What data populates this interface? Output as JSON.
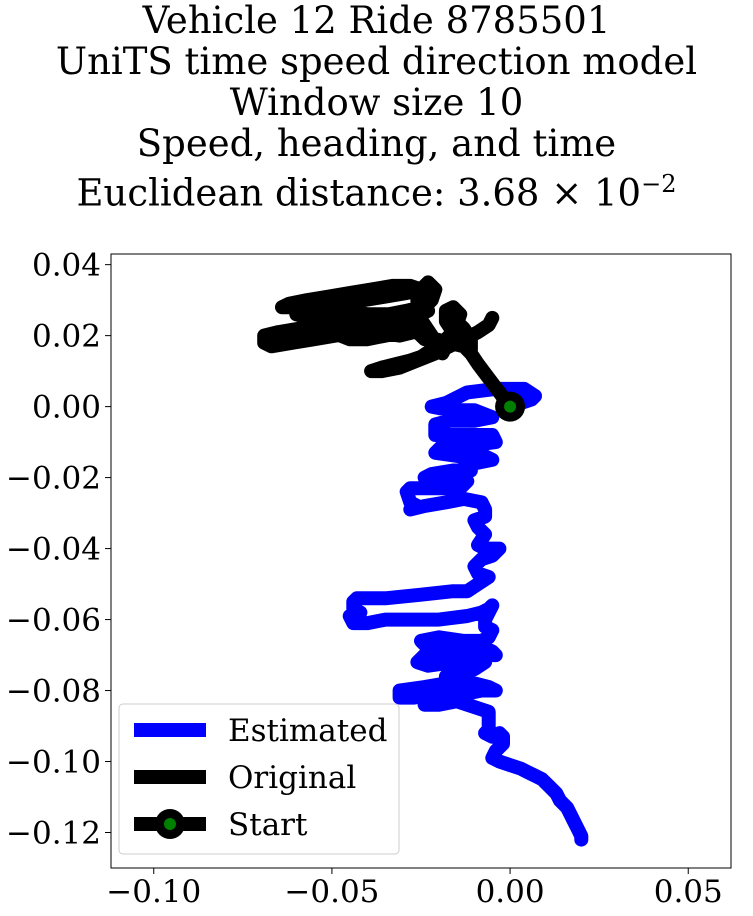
{
  "chart_data": {
    "type": "line",
    "title_lines": [
      "Vehicle 12 Ride 8785501",
      "UniTS time speed direction model",
      "Window size 10",
      "Speed, heading, and time",
      "Euclidean distance: 3.68 × 10"
    ],
    "title_exponent": "−2",
    "xlim": [
      -0.112,
      0.062
    ],
    "ylim": [
      -0.13,
      0.043
    ],
    "x_ticks": [
      {
        "value": -0.1,
        "label": "−0.10"
      },
      {
        "value": -0.05,
        "label": "−0.05"
      },
      {
        "value": 0.0,
        "label": "0.00"
      },
      {
        "value": 0.05,
        "label": "0.05"
      }
    ],
    "y_ticks": [
      {
        "value": 0.04,
        "label": "0.04"
      },
      {
        "value": 0.02,
        "label": "0.02"
      },
      {
        "value": 0.0,
        "label": "0.00"
      },
      {
        "value": -0.02,
        "label": "−0.02"
      },
      {
        "value": -0.04,
        "label": "−0.04"
      },
      {
        "value": -0.06,
        "label": "−0.06"
      },
      {
        "value": -0.08,
        "label": "−0.08"
      },
      {
        "value": -0.1,
        "label": "−0.10"
      },
      {
        "value": -0.12,
        "label": "−0.12"
      }
    ],
    "grid": false,
    "legend_position": "lower-left",
    "series": [
      {
        "name": "Estimated",
        "color": "#0000ff",
        "points": [
          [
            0.0,
            0.0
          ],
          [
            0.006,
            0.002
          ],
          [
            0.007,
            0.003
          ],
          [
            0.004,
            0.005
          ],
          [
            -0.004,
            0.005
          ],
          [
            -0.012,
            0.004
          ],
          [
            -0.018,
            0.001
          ],
          [
            -0.022,
            0.0
          ],
          [
            -0.017,
            -0.001
          ],
          [
            -0.01,
            -0.001
          ],
          [
            -0.005,
            -0.003
          ],
          [
            -0.01,
            -0.004
          ],
          [
            -0.017,
            -0.004
          ],
          [
            -0.021,
            -0.005
          ],
          [
            -0.021,
            -0.008
          ],
          [
            -0.013,
            -0.008
          ],
          [
            -0.005,
            -0.008
          ],
          [
            -0.004,
            -0.01
          ],
          [
            -0.012,
            -0.011
          ],
          [
            -0.019,
            -0.011
          ],
          [
            -0.021,
            -0.013
          ],
          [
            -0.014,
            -0.014
          ],
          [
            -0.007,
            -0.014
          ],
          [
            -0.005,
            -0.015
          ],
          [
            -0.01,
            -0.016
          ],
          [
            -0.013,
            -0.017
          ],
          [
            -0.011,
            -0.018
          ],
          [
            -0.016,
            -0.018
          ],
          [
            -0.022,
            -0.019
          ],
          [
            -0.024,
            -0.02
          ],
          [
            -0.017,
            -0.02
          ],
          [
            -0.012,
            -0.021
          ],
          [
            -0.014,
            -0.023
          ],
          [
            -0.021,
            -0.023
          ],
          [
            -0.028,
            -0.023
          ],
          [
            -0.029,
            -0.024
          ],
          [
            -0.028,
            -0.027
          ],
          [
            -0.026,
            -0.028
          ],
          [
            -0.028,
            -0.029
          ],
          [
            -0.024,
            -0.028
          ],
          [
            -0.018,
            -0.027
          ],
          [
            -0.013,
            -0.026
          ],
          [
            -0.008,
            -0.027
          ],
          [
            -0.007,
            -0.029
          ],
          [
            -0.007,
            -0.031
          ],
          [
            -0.01,
            -0.032
          ],
          [
            -0.009,
            -0.034
          ],
          [
            -0.007,
            -0.036
          ],
          [
            -0.009,
            -0.039
          ],
          [
            -0.007,
            -0.04
          ],
          [
            -0.003,
            -0.04
          ],
          [
            -0.005,
            -0.042
          ],
          [
            -0.008,
            -0.043
          ],
          [
            -0.01,
            -0.045
          ],
          [
            -0.009,
            -0.047
          ],
          [
            -0.006,
            -0.048
          ],
          [
            -0.009,
            -0.05
          ],
          [
            -0.012,
            -0.052
          ],
          [
            -0.016,
            -0.052
          ],
          [
            -0.025,
            -0.053
          ],
          [
            -0.035,
            -0.054
          ],
          [
            -0.043,
            -0.054
          ],
          [
            -0.044,
            -0.055
          ],
          [
            -0.044,
            -0.057
          ],
          [
            -0.042,
            -0.058
          ],
          [
            -0.045,
            -0.059
          ],
          [
            -0.044,
            -0.061
          ],
          [
            -0.04,
            -0.061
          ],
          [
            -0.035,
            -0.06
          ],
          [
            -0.028,
            -0.06
          ],
          [
            -0.02,
            -0.06
          ],
          [
            -0.012,
            -0.059
          ],
          [
            -0.008,
            -0.058
          ],
          [
            -0.006,
            -0.057
          ],
          [
            -0.005,
            -0.056
          ],
          [
            -0.006,
            -0.058
          ],
          [
            -0.007,
            -0.06
          ],
          [
            -0.007,
            -0.062
          ],
          [
            -0.005,
            -0.063
          ],
          [
            -0.006,
            -0.065
          ],
          [
            -0.008,
            -0.066
          ],
          [
            -0.013,
            -0.066
          ],
          [
            -0.02,
            -0.065
          ],
          [
            -0.025,
            -0.066
          ],
          [
            -0.023,
            -0.068
          ],
          [
            -0.018,
            -0.068
          ],
          [
            -0.012,
            -0.068
          ],
          [
            -0.007,
            -0.068
          ],
          [
            -0.005,
            -0.069
          ],
          [
            -0.004,
            -0.07
          ],
          [
            -0.01,
            -0.07
          ],
          [
            -0.018,
            -0.07
          ],
          [
            -0.024,
            -0.07
          ],
          [
            -0.026,
            -0.072
          ],
          [
            -0.023,
            -0.073
          ],
          [
            -0.016,
            -0.072
          ],
          [
            -0.01,
            -0.071
          ],
          [
            -0.007,
            -0.072
          ],
          [
            -0.01,
            -0.074
          ],
          [
            -0.014,
            -0.075
          ],
          [
            -0.018,
            -0.076
          ],
          [
            -0.018,
            -0.078
          ],
          [
            -0.024,
            -0.079
          ],
          [
            -0.031,
            -0.08
          ],
          [
            -0.031,
            -0.082
          ],
          [
            -0.027,
            -0.082
          ],
          [
            -0.022,
            -0.081
          ],
          [
            -0.018,
            -0.08
          ],
          [
            -0.014,
            -0.079
          ],
          [
            -0.01,
            -0.078
          ],
          [
            -0.006,
            -0.079
          ],
          [
            -0.004,
            -0.08
          ],
          [
            -0.008,
            -0.08
          ],
          [
            -0.013,
            -0.081
          ],
          [
            -0.017,
            -0.082
          ],
          [
            -0.021,
            -0.083
          ],
          [
            -0.024,
            -0.084
          ],
          [
            -0.02,
            -0.084
          ],
          [
            -0.015,
            -0.083
          ],
          [
            -0.012,
            -0.084
          ],
          [
            -0.009,
            -0.085
          ],
          [
            -0.006,
            -0.086
          ],
          [
            -0.006,
            -0.087
          ],
          [
            -0.006,
            -0.089
          ],
          [
            -0.006,
            -0.09
          ],
          [
            -0.006,
            -0.091
          ],
          [
            -0.007,
            -0.092
          ],
          [
            -0.005,
            -0.093
          ],
          [
            -0.003,
            -0.092
          ],
          [
            -0.002,
            -0.093
          ],
          [
            -0.002,
            -0.095
          ],
          [
            -0.004,
            -0.097
          ],
          [
            -0.005,
            -0.099
          ],
          [
            -0.003,
            -0.1
          ],
          [
            0.0,
            -0.101
          ],
          [
            0.003,
            -0.102
          ],
          [
            0.005,
            -0.103
          ],
          [
            0.007,
            -0.104
          ],
          [
            0.009,
            -0.105
          ],
          [
            0.011,
            -0.107
          ],
          [
            0.013,
            -0.109
          ],
          [
            0.014,
            -0.111
          ],
          [
            0.016,
            -0.113
          ],
          [
            0.017,
            -0.115
          ],
          [
            0.018,
            -0.117
          ],
          [
            0.019,
            -0.119
          ],
          [
            0.02,
            -0.121
          ],
          [
            0.02,
            -0.122
          ]
        ]
      },
      {
        "name": "Original",
        "color": "#000000",
        "points": [
          [
            0.0,
            0.0
          ],
          [
            -0.003,
            0.004
          ],
          [
            -0.006,
            0.008
          ],
          [
            -0.009,
            0.012
          ],
          [
            -0.011,
            0.015
          ],
          [
            -0.013,
            0.017
          ],
          [
            -0.017,
            0.018
          ],
          [
            -0.021,
            0.019
          ],
          [
            -0.024,
            0.019
          ],
          [
            -0.026,
            0.021
          ],
          [
            -0.031,
            0.022
          ],
          [
            -0.037,
            0.022
          ],
          [
            -0.042,
            0.021
          ],
          [
            -0.049,
            0.02
          ],
          [
            -0.055,
            0.019
          ],
          [
            -0.061,
            0.018
          ],
          [
            -0.067,
            0.017
          ],
          [
            -0.069,
            0.018
          ],
          [
            -0.069,
            0.02
          ],
          [
            -0.065,
            0.021
          ],
          [
            -0.059,
            0.022
          ],
          [
            -0.052,
            0.022
          ],
          [
            -0.045,
            0.021
          ],
          [
            -0.038,
            0.021
          ],
          [
            -0.031,
            0.02
          ],
          [
            -0.027,
            0.021
          ],
          [
            -0.03,
            0.023
          ],
          [
            -0.036,
            0.023
          ],
          [
            -0.043,
            0.024
          ],
          [
            -0.05,
            0.024
          ],
          [
            -0.056,
            0.025
          ],
          [
            -0.06,
            0.026
          ],
          [
            -0.058,
            0.027
          ],
          [
            -0.053,
            0.028
          ],
          [
            -0.047,
            0.029
          ],
          [
            -0.041,
            0.03
          ],
          [
            -0.035,
            0.031
          ],
          [
            -0.029,
            0.032
          ],
          [
            -0.025,
            0.033
          ],
          [
            -0.028,
            0.034
          ],
          [
            -0.033,
            0.034
          ],
          [
            -0.039,
            0.033
          ],
          [
            -0.045,
            0.032
          ],
          [
            -0.051,
            0.031
          ],
          [
            -0.057,
            0.03
          ],
          [
            -0.062,
            0.029
          ],
          [
            -0.064,
            0.028
          ],
          [
            -0.058,
            0.028
          ],
          [
            -0.052,
            0.027
          ],
          [
            -0.046,
            0.027
          ],
          [
            -0.04,
            0.026
          ],
          [
            -0.034,
            0.026
          ],
          [
            -0.029,
            0.027
          ],
          [
            -0.025,
            0.028
          ],
          [
            -0.023,
            0.027
          ],
          [
            -0.027,
            0.025
          ],
          [
            -0.033,
            0.024
          ],
          [
            -0.039,
            0.024
          ],
          [
            -0.045,
            0.024
          ],
          [
            -0.051,
            0.024
          ],
          [
            -0.054,
            0.023
          ],
          [
            -0.05,
            0.021
          ],
          [
            -0.045,
            0.019
          ],
          [
            -0.04,
            0.019
          ],
          [
            -0.035,
            0.02
          ],
          [
            -0.03,
            0.021
          ],
          [
            -0.027,
            0.024
          ],
          [
            -0.025,
            0.027
          ],
          [
            -0.022,
            0.03
          ],
          [
            -0.021,
            0.033
          ],
          [
            -0.023,
            0.035
          ],
          [
            -0.025,
            0.033
          ],
          [
            -0.026,
            0.03
          ],
          [
            -0.026,
            0.026
          ],
          [
            -0.024,
            0.023
          ],
          [
            -0.022,
            0.02
          ],
          [
            -0.02,
            0.017
          ],
          [
            -0.019,
            0.015
          ],
          [
            -0.017,
            0.019
          ],
          [
            -0.015,
            0.023
          ],
          [
            -0.014,
            0.026
          ],
          [
            -0.016,
            0.028
          ],
          [
            -0.018,
            0.027
          ],
          [
            -0.018,
            0.024
          ],
          [
            -0.016,
            0.021
          ],
          [
            -0.014,
            0.018
          ],
          [
            -0.011,
            0.016
          ],
          [
            -0.011,
            0.019
          ],
          [
            -0.013,
            0.022
          ],
          [
            -0.015,
            0.024
          ],
          [
            -0.016,
            0.021
          ],
          [
            -0.019,
            0.018
          ],
          [
            -0.022,
            0.016
          ],
          [
            -0.025,
            0.014
          ],
          [
            -0.028,
            0.013
          ],
          [
            -0.032,
            0.012
          ],
          [
            -0.036,
            0.011
          ],
          [
            -0.039,
            0.01
          ],
          [
            -0.036,
            0.01
          ],
          [
            -0.031,
            0.011
          ],
          [
            -0.026,
            0.013
          ],
          [
            -0.021,
            0.015
          ],
          [
            -0.017,
            0.017
          ],
          [
            -0.013,
            0.019
          ],
          [
            -0.009,
            0.021
          ],
          [
            -0.006,
            0.023
          ],
          [
            -0.005,
            0.025
          ]
        ]
      }
    ],
    "start_point": {
      "name": "Start",
      "x": 0.0,
      "y": 0.0,
      "edge_color": "#000000",
      "fill_color": "#008000"
    },
    "legend": [
      {
        "label": "Estimated",
        "color": "#0000ff",
        "marker": false
      },
      {
        "label": "Original",
        "color": "#000000",
        "marker": false
      },
      {
        "label": "Start",
        "color": "#000000",
        "marker": true,
        "marker_fill": "#008000"
      }
    ]
  }
}
